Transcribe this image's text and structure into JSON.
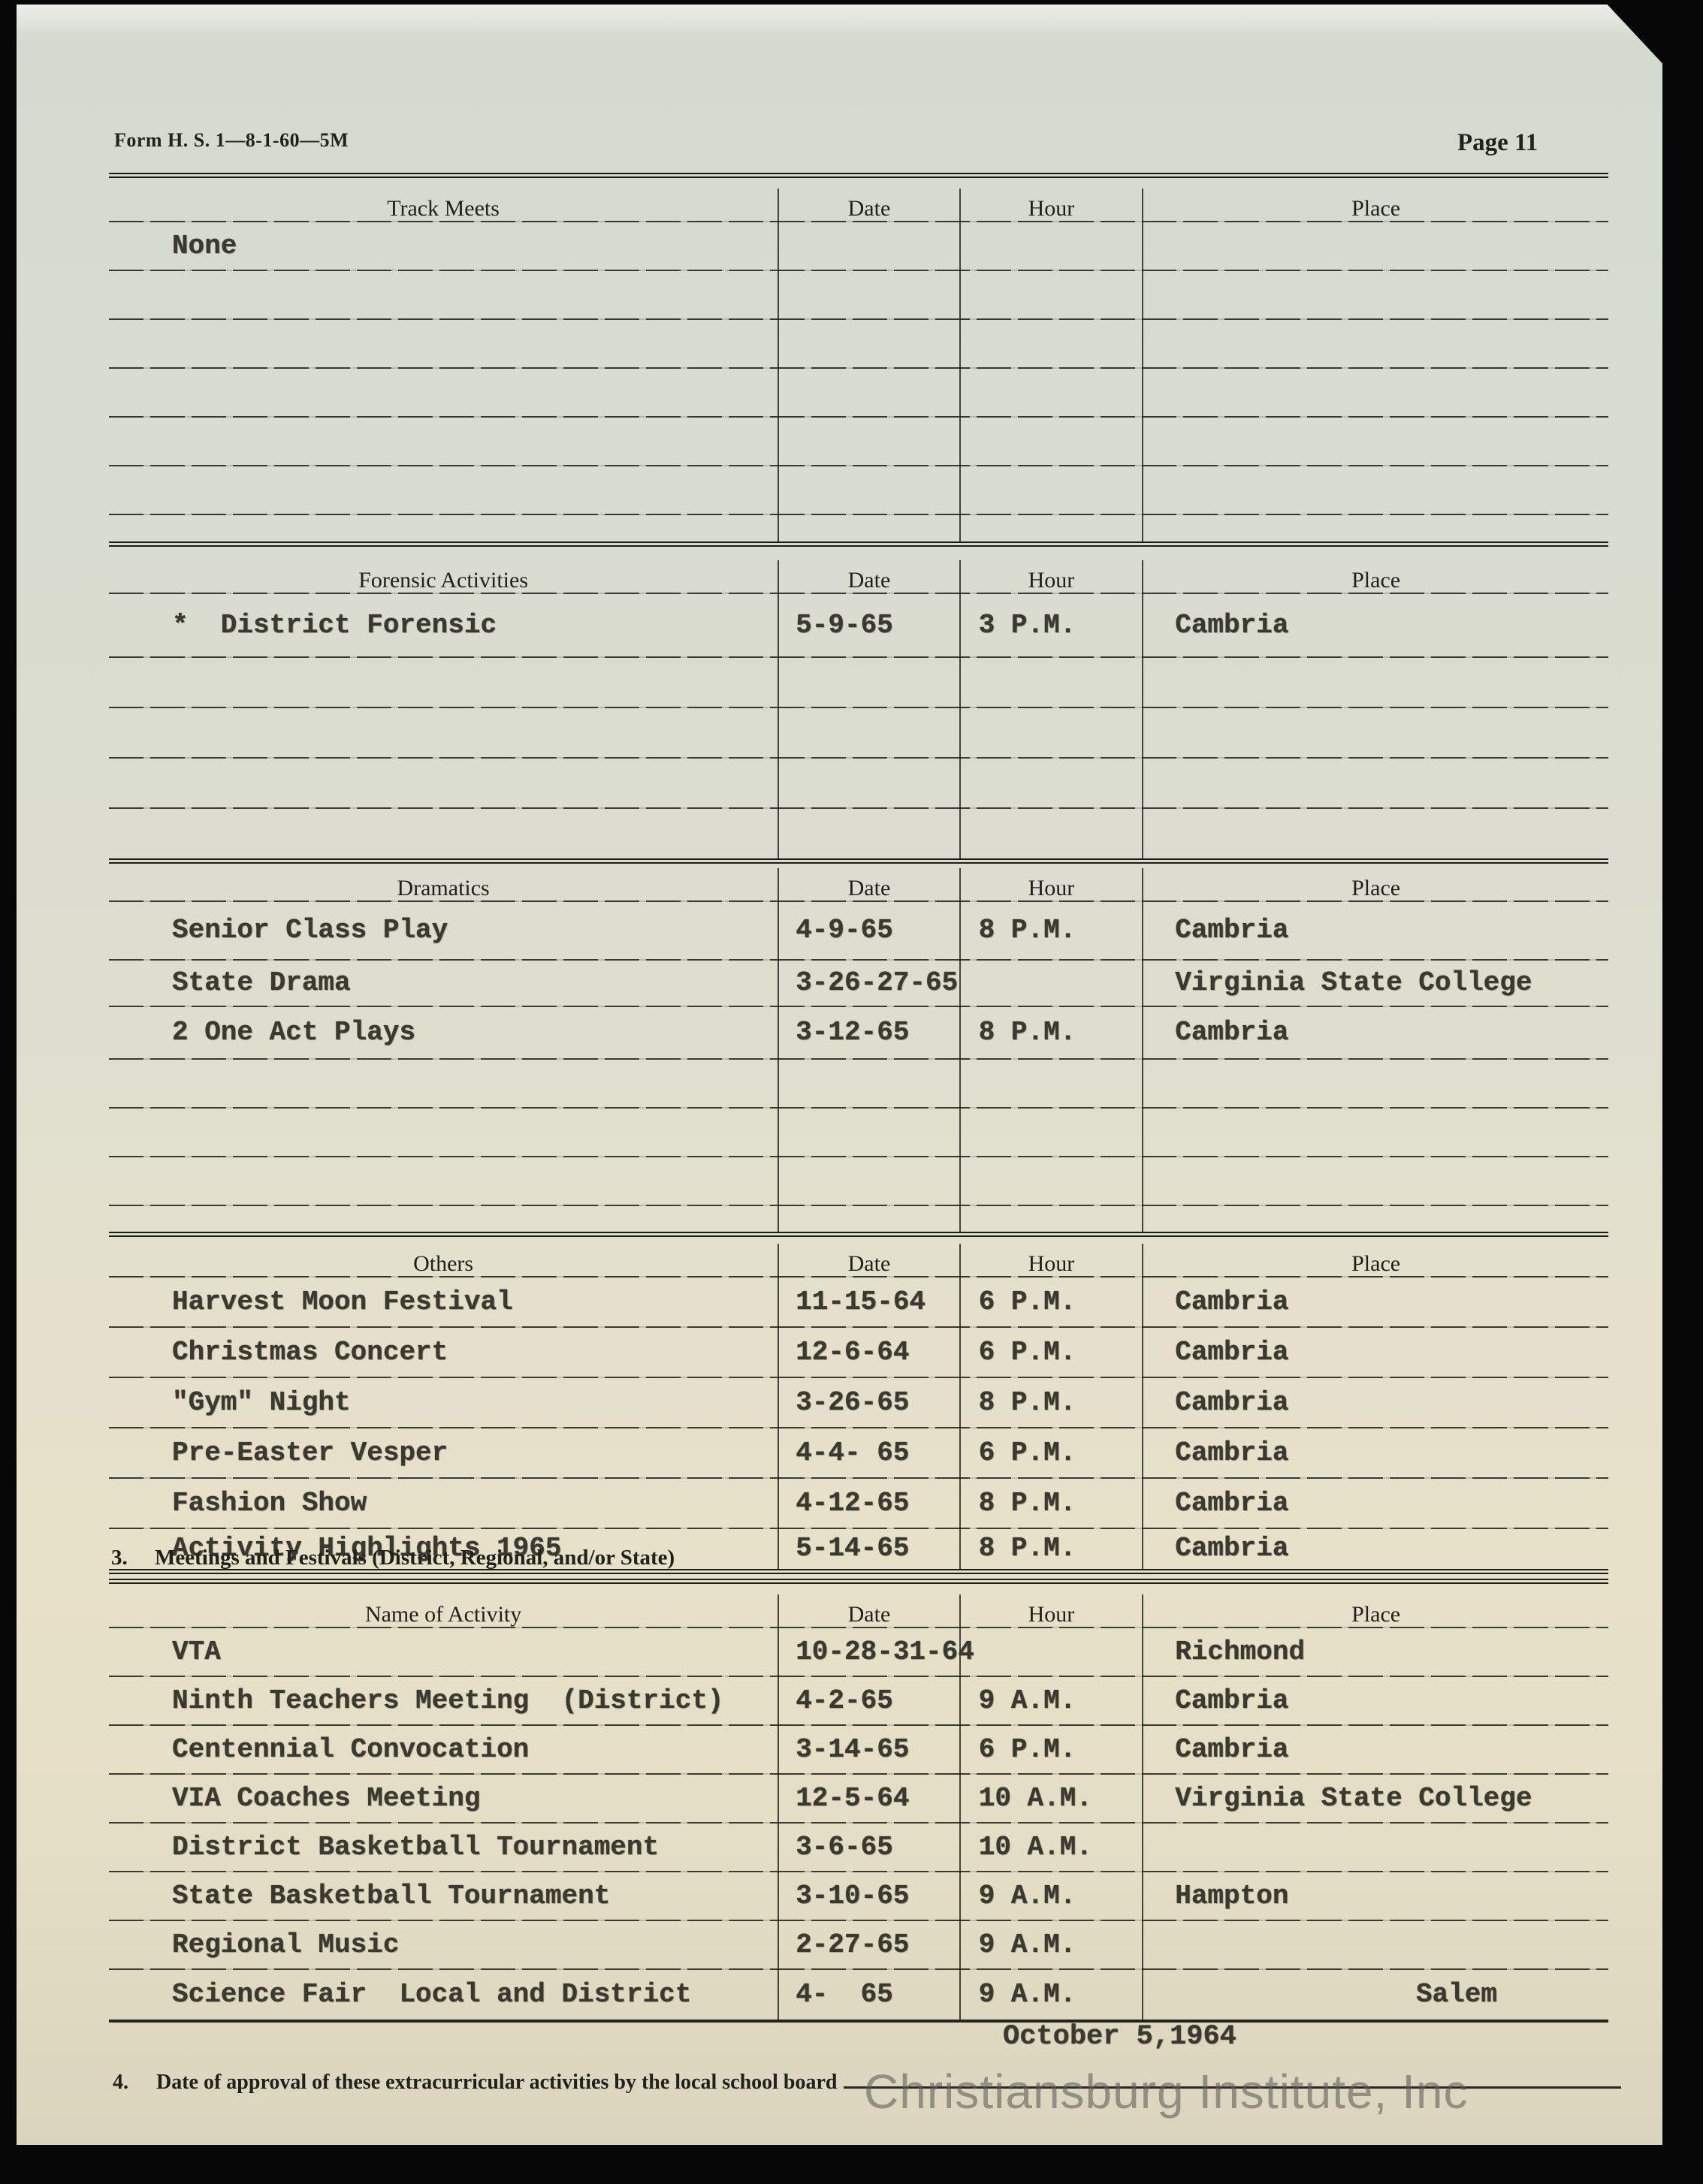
{
  "page": {
    "form_number": "Form H. S. 1—8-1-60—5M",
    "page_label": "Page 11",
    "watermark": "Christiansburg Institute, Inc"
  },
  "sections": [
    {
      "id": "track-meets",
      "columns": [
        "Track Meets",
        "Date",
        "Hour",
        "Place"
      ],
      "rows": [
        {
          "cells": [
            "None",
            "",
            "",
            ""
          ]
        },
        {
          "cells": [
            "",
            "",
            "",
            ""
          ]
        },
        {
          "cells": [
            "",
            "",
            "",
            ""
          ]
        },
        {
          "cells": [
            "",
            "",
            "",
            ""
          ]
        },
        {
          "cells": [
            "",
            "",
            "",
            ""
          ]
        },
        {
          "cells": [
            "",
            "",
            "",
            ""
          ]
        },
        {
          "cells": [
            "",
            "",
            "",
            ""
          ]
        }
      ]
    },
    {
      "id": "forensic-activities",
      "columns": [
        "Forensic Activities",
        "Date",
        "Hour",
        "Place"
      ],
      "rows": [
        {
          "cells": [
            "*  District Forensic",
            "5-9-65",
            "3 P.M.",
            "Cambria"
          ]
        },
        {
          "cells": [
            "",
            "",
            "",
            ""
          ]
        },
        {
          "cells": [
            "",
            "",
            "",
            ""
          ]
        },
        {
          "cells": [
            "",
            "",
            "",
            ""
          ]
        },
        {
          "cells": [
            "",
            "",
            "",
            ""
          ]
        }
      ]
    },
    {
      "id": "dramatics",
      "columns": [
        "Dramatics",
        "Date",
        "Hour",
        "Place"
      ],
      "rows": [
        {
          "cells": [
            "Senior Class Play",
            "4-9-65",
            "8 P.M.",
            "Cambria"
          ]
        },
        {
          "cells": [
            "State Drama",
            "3-26-27-65",
            "",
            "Virginia State College"
          ]
        },
        {
          "cells": [
            "2 One Act Plays",
            "3-12-65",
            "8 P.M.",
            "Cambria"
          ]
        },
        {
          "cells": [
            "",
            "",
            "",
            ""
          ]
        },
        {
          "cells": [
            "",
            "",
            "",
            ""
          ]
        },
        {
          "cells": [
            "",
            "",
            "",
            ""
          ]
        },
        {
          "cells": [
            "",
            "",
            "",
            ""
          ]
        }
      ]
    },
    {
      "id": "others",
      "columns": [
        "Others",
        "Date",
        "Hour",
        "Place"
      ],
      "rows": [
        {
          "cells": [
            "Harvest Moon Festival",
            "11-15-64",
            "6 P.M.",
            "Cambria"
          ]
        },
        {
          "cells": [
            "Christmas Concert",
            "12-6-64",
            "6 P.M.",
            "Cambria"
          ]
        },
        {
          "cells": [
            "\"Gym\" Night",
            "3-26-65",
            "8 P.M.",
            "Cambria"
          ]
        },
        {
          "cells": [
            "Pre-Easter Vesper",
            "4-4- 65",
            "6 P.M.",
            "Cambria"
          ]
        },
        {
          "cells": [
            "Fashion Show",
            "4-12-65",
            "8 P.M.",
            "Cambria"
          ]
        },
        {
          "cells": [
            "Activity Highlights 1965",
            "5-14-65",
            "8 P.M.",
            "Cambria"
          ]
        }
      ]
    },
    {
      "id": "meetings-festivals",
      "columns": [
        "Name of Activity",
        "Date",
        "Hour",
        "Place"
      ],
      "rows": [
        {
          "cells": [
            "VTA",
            "10-28-31-64",
            "",
            "Richmond"
          ]
        },
        {
          "cells": [
            "Ninth Teachers Meeting  (District)",
            "4-2-65",
            "9 A.M.",
            "Cambria"
          ]
        },
        {
          "cells": [
            "Centennial Convocation",
            "3-14-65",
            "6 P.M.",
            "Cambria"
          ]
        },
        {
          "cells": [
            "VIA Coaches Meeting",
            "12-5-64",
            "10 A.M.",
            "Virginia State College"
          ]
        },
        {
          "cells": [
            "District Basketball Tournament",
            "3-6-65",
            "10 A.M.",
            ""
          ]
        },
        {
          "cells": [
            "State Basketball Tournament",
            "3-10-65",
            "9 A.M.",
            "Hampton"
          ]
        },
        {
          "cells": [
            "Regional Music",
            "2-27-65",
            "9 A.M.",
            ""
          ]
        },
        {
          "cells": [
            "Science Fair  Local and District",
            "4-  65",
            "9 A.M.",
            "Salem"
          ],
          "place_align": "right"
        }
      ]
    }
  ],
  "section3": {
    "number": "3.",
    "label": "Meetings and Festivals (District, Regional, and/or State)"
  },
  "section4": {
    "number": "4.",
    "label": "Date of approval of these extracurricular activities by the local school board",
    "approval_date": "October 5,1964"
  }
}
